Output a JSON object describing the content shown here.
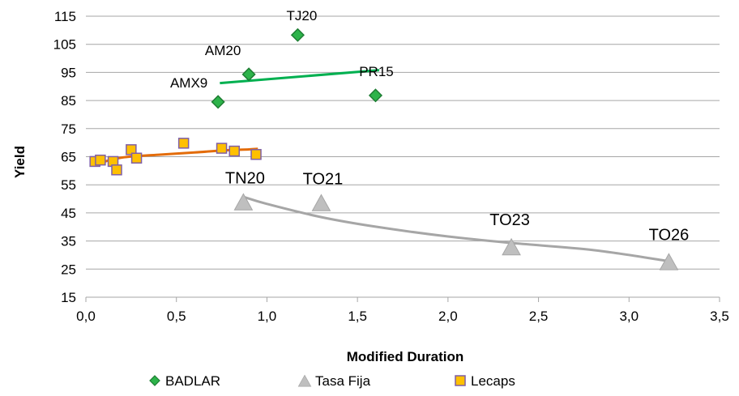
{
  "chart_data": {
    "type": "scatter",
    "xlabel": "Modified Duration",
    "ylabel": "Yield",
    "xlim": [
      0.0,
      3.5
    ],
    "ylim": [
      15,
      115
    ],
    "x_ticks": [
      0.0,
      0.5,
      1.0,
      1.5,
      2.0,
      2.5,
      3.0,
      3.5
    ],
    "x_tick_labels": [
      "0,0",
      "0,5",
      "1,0",
      "1,5",
      "2,0",
      "2,5",
      "3,0",
      "3,5"
    ],
    "y_ticks": [
      15,
      25,
      35,
      45,
      55,
      65,
      75,
      85,
      95,
      105,
      115
    ],
    "y_tick_labels": [
      "15",
      "25",
      "35",
      "45",
      "55",
      "65",
      "75",
      "85",
      "95",
      "105",
      "115"
    ],
    "grid": "horizontal",
    "legend_position": "bottom",
    "series": [
      {
        "name": "BADLAR",
        "marker": "diamond",
        "color": "#2db34a",
        "border": "#1e7d33",
        "points": [
          {
            "x": 0.73,
            "y": 84.5,
            "label": "AMX9"
          },
          {
            "x": 0.9,
            "y": 94.3,
            "label": "AM20"
          },
          {
            "x": 1.17,
            "y": 108.3,
            "label": "TJ20"
          },
          {
            "x": 1.6,
            "y": 86.8,
            "label": "PR15"
          }
        ],
        "trendline": {
          "kind": "linear",
          "color": "#00b050",
          "x": [
            0.74,
            1.62
          ],
          "y": [
            91.2,
            95.8
          ]
        }
      },
      {
        "name": "Tasa Fija",
        "marker": "triangle",
        "color": "#bfbfbf",
        "border": "#a6a6a6",
        "points": [
          {
            "x": 0.87,
            "y": 48.6,
            "label": "TN20"
          },
          {
            "x": 1.3,
            "y": 48.3,
            "label": "TO21"
          },
          {
            "x": 2.35,
            "y": 32.6,
            "label": "TO23"
          },
          {
            "x": 3.22,
            "y": 27.3,
            "label": "TO26"
          }
        ],
        "trendline": {
          "kind": "power",
          "color": "#a6a6a6",
          "x": [
            0.87,
            1.0,
            1.3,
            1.6,
            2.0,
            2.35,
            2.8,
            3.22
          ],
          "y": [
            50.7,
            48.2,
            43.5,
            40.1,
            36.6,
            34.3,
            31.8,
            27.8
          ]
        }
      },
      {
        "name": "Lecaps",
        "marker": "square",
        "color": "#ffc000",
        "border": "#7f5fa6",
        "points": [
          {
            "x": 0.05,
            "y": 63.3
          },
          {
            "x": 0.08,
            "y": 63.8
          },
          {
            "x": 0.15,
            "y": 63.3
          },
          {
            "x": 0.17,
            "y": 60.3
          },
          {
            "x": 0.25,
            "y": 67.5
          },
          {
            "x": 0.28,
            "y": 64.5
          },
          {
            "x": 0.54,
            "y": 69.8
          },
          {
            "x": 0.75,
            "y": 68.0
          },
          {
            "x": 0.82,
            "y": 67.0
          },
          {
            "x": 0.94,
            "y": 65.8
          }
        ],
        "trendline": {
          "kind": "polynomial",
          "color": "#e36c0a",
          "x": [
            0.05,
            0.2,
            0.4,
            0.6,
            0.75,
            0.9,
            0.95
          ],
          "y": [
            62.3,
            64.7,
            65.7,
            66.5,
            67.2,
            67.6,
            67.8
          ]
        }
      }
    ]
  }
}
